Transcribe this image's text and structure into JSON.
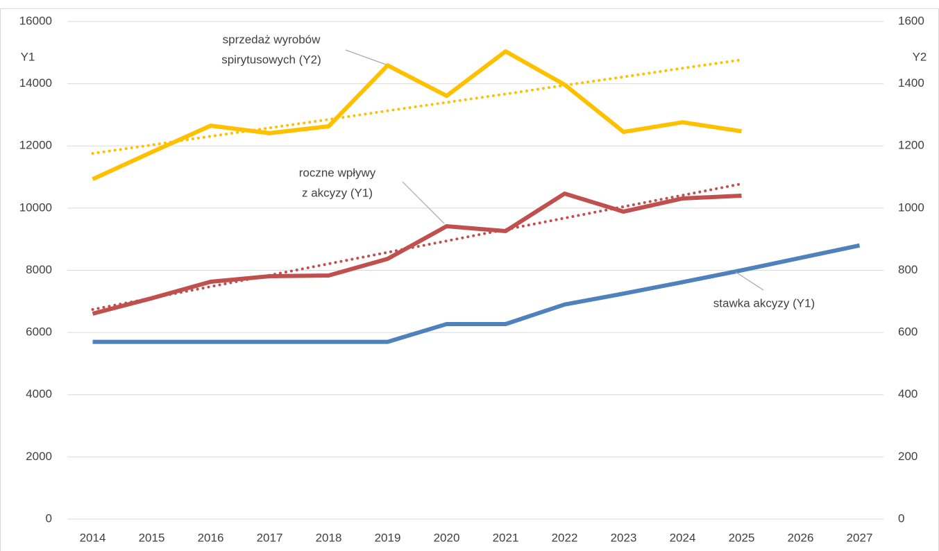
{
  "chart_data": {
    "type": "line",
    "y_label": "Y1",
    "y2_label": "Y2",
    "categories": [
      "2014",
      "2015",
      "2016",
      "2017",
      "2018",
      "2019",
      "2020",
      "2021",
      "2022",
      "2023",
      "2024",
      "2025",
      "2026",
      "2027"
    ],
    "series": [
      {
        "color": "#4f81bd",
        "values": [
          5700,
          5700,
          5700,
          5700,
          5700,
          5700,
          6270,
          6270,
          6900,
          7250,
          7620,
          8000,
          8400,
          8800
        ]
      },
      {
        "color": "#c0504d",
        "values": [
          6605,
          7100,
          7632,
          7810,
          7832,
          8368,
          9417,
          9261,
          10466,
          9886,
          10310,
          10399,
          null,
          null
        ]
      },
      {
        "color": "#c0504d",
        "dash": true,
        "values": [
          6740,
          7107,
          7475,
          7842,
          8209,
          8577,
          8944,
          9311,
          9678,
          10046,
          10413,
          10780,
          null,
          null
        ]
      },
      {
        "color": "#ffc000",
        "axis": "y2",
        "values": [
          1093,
          1180,
          1265,
          1241,
          1263,
          1459,
          1361,
          1504,
          1397,
          1245,
          1276,
          1247,
          null,
          null
        ]
      },
      {
        "color": "#ffc000",
        "axis": "y2",
        "dash": true,
        "values": [
          1176,
          1203,
          1231,
          1258,
          1285,
          1313,
          1340,
          1367,
          1395,
          1422,
          1450,
          1477,
          null,
          null
        ]
      }
    ],
    "ylim": [
      0,
      16000
    ],
    "yticks": [
      0,
      2000,
      4000,
      6000,
      8000,
      10000,
      12000,
      14000,
      16000
    ],
    "y2lim": [
      0,
      1600
    ],
    "y2ticks": [
      0,
      200,
      400,
      600,
      800,
      1000,
      1200,
      1400,
      1600
    ],
    "grid": true,
    "annotations": [
      {
        "lines": [
          "sprzedaż wyrobów",
          "spirytusowych (Y2)"
        ]
      },
      {
        "lines": [
          "roczne wpływy",
          "z akcyzy (Y1)"
        ]
      },
      {
        "lines": [
          "stawka akcyzy (Y1)"
        ]
      }
    ]
  }
}
